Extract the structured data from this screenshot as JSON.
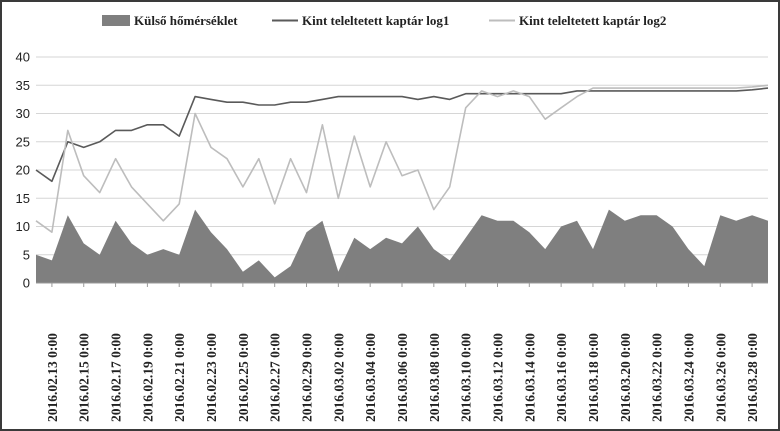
{
  "chart_data": {
    "type": "line",
    "title": "",
    "xlabel": "",
    "ylabel": "",
    "ylim": [
      0,
      40
    ],
    "yticks": [
      0,
      5,
      10,
      15,
      20,
      25,
      30,
      35,
      40
    ],
    "xlim": [
      "2016.02.12",
      "2016.03.29"
    ],
    "grid": "horizontal",
    "legend_position": "top",
    "x_tick_labels": [
      "2016.02.13 0:00",
      "2016.02.15 0:00",
      "2016.02.17 0:00",
      "2016.02.19 0:00",
      "2016.02.21 0:00",
      "2016.02.23 0:00",
      "2016.02.25 0:00",
      "2016.02.27 0:00",
      "2016.02.29 0:00",
      "2016.03.02 0:00",
      "2016.03.04 0:00",
      "2016.03.06 0:00",
      "2016.03.08 0:00",
      "2016.03.10 0:00",
      "2016.03.12 0:00",
      "2016.03.14 0:00",
      "2016.03.16 0:00",
      "2016.03.18 0:00",
      "2016.03.20 0:00",
      "2016.03.22 0:00",
      "2016.03.24 0:00",
      "2016.03.26 0:00",
      "2016.03.28 0:00"
    ],
    "series": [
      {
        "name": "Külső hőmérséklet",
        "kind": "area",
        "color": "#7f7f7f",
        "x": [
          "2016.02.12",
          "2016.02.13",
          "2016.02.14",
          "2016.02.15",
          "2016.02.16",
          "2016.02.17",
          "2016.02.18",
          "2016.02.19",
          "2016.02.20",
          "2016.02.21",
          "2016.02.22",
          "2016.02.23",
          "2016.02.24",
          "2016.02.25",
          "2016.02.26",
          "2016.02.27",
          "2016.02.28",
          "2016.02.29",
          "2016.03.01",
          "2016.03.02",
          "2016.03.03",
          "2016.03.04",
          "2016.03.05",
          "2016.03.06",
          "2016.03.07",
          "2016.03.08",
          "2016.03.09",
          "2016.03.10",
          "2016.03.11",
          "2016.03.12",
          "2016.03.13",
          "2016.03.14",
          "2016.03.15",
          "2016.03.16",
          "2016.03.17",
          "2016.03.18",
          "2016.03.19",
          "2016.03.20",
          "2016.03.21",
          "2016.03.22",
          "2016.03.23",
          "2016.03.24",
          "2016.03.25",
          "2016.03.26",
          "2016.03.27",
          "2016.03.28",
          "2016.03.29"
        ],
        "values": [
          5,
          4,
          12,
          7,
          5,
          11,
          7,
          5,
          6,
          5,
          13,
          9,
          6,
          2,
          4,
          1,
          3,
          9,
          11,
          2,
          8,
          6,
          8,
          7,
          10,
          6,
          4,
          8,
          12,
          11,
          11,
          9,
          6,
          10,
          11,
          6,
          13,
          11,
          12,
          12,
          10,
          6,
          3,
          12,
          11,
          12,
          11
        ]
      },
      {
        "name": "Kint teleltetett kaptár log1",
        "kind": "line",
        "color": "#5a5a5a",
        "x": [
          "2016.02.12",
          "2016.02.13",
          "2016.02.14",
          "2016.02.15",
          "2016.02.16",
          "2016.02.17",
          "2016.02.18",
          "2016.02.19",
          "2016.02.20",
          "2016.02.21",
          "2016.02.22",
          "2016.02.23",
          "2016.02.24",
          "2016.02.25",
          "2016.02.26",
          "2016.02.27",
          "2016.02.28",
          "2016.02.29",
          "2016.03.01",
          "2016.03.02",
          "2016.03.03",
          "2016.03.04",
          "2016.03.05",
          "2016.03.06",
          "2016.03.07",
          "2016.03.08",
          "2016.03.09",
          "2016.03.10",
          "2016.03.11",
          "2016.03.12",
          "2016.03.13",
          "2016.03.14",
          "2016.03.15",
          "2016.03.16",
          "2016.03.17",
          "2016.03.18",
          "2016.03.19",
          "2016.03.20",
          "2016.03.21",
          "2016.03.22",
          "2016.03.23",
          "2016.03.24",
          "2016.03.25",
          "2016.03.26",
          "2016.03.27",
          "2016.03.28",
          "2016.03.29"
        ],
        "values": [
          20,
          18,
          25,
          24,
          25,
          27,
          27,
          28,
          28,
          26,
          33,
          32.5,
          32,
          32,
          31.5,
          31.5,
          32,
          32,
          32.5,
          33,
          33,
          33,
          33,
          33,
          32.5,
          33,
          32.5,
          33.5,
          33.5,
          33.5,
          33.5,
          33.5,
          33.5,
          33.5,
          34,
          34,
          34,
          34,
          34,
          34,
          34,
          34,
          34,
          34,
          34,
          34.2,
          34.5
        ]
      },
      {
        "name": "Kint teleltetett kaptár log2",
        "kind": "line",
        "color": "#bdbdbd",
        "x": [
          "2016.02.12",
          "2016.02.13",
          "2016.02.14",
          "2016.02.15",
          "2016.02.16",
          "2016.02.17",
          "2016.02.18",
          "2016.02.19",
          "2016.02.20",
          "2016.02.21",
          "2016.02.22",
          "2016.02.23",
          "2016.02.24",
          "2016.02.25",
          "2016.02.26",
          "2016.02.27",
          "2016.02.28",
          "2016.02.29",
          "2016.03.01",
          "2016.03.02",
          "2016.03.03",
          "2016.03.04",
          "2016.03.05",
          "2016.03.06",
          "2016.03.07",
          "2016.03.08",
          "2016.03.09",
          "2016.03.10",
          "2016.03.11",
          "2016.03.12",
          "2016.03.13",
          "2016.03.14",
          "2016.03.15",
          "2016.03.16",
          "2016.03.17",
          "2016.03.18",
          "2016.03.19",
          "2016.03.20",
          "2016.03.21",
          "2016.03.22",
          "2016.03.23",
          "2016.03.24",
          "2016.03.25",
          "2016.03.26",
          "2016.03.27",
          "2016.03.28",
          "2016.03.29"
        ],
        "values": [
          11,
          9,
          27,
          19,
          16,
          22,
          17,
          14,
          11,
          14,
          30,
          24,
          22,
          17,
          22,
          14,
          22,
          16,
          28,
          15,
          26,
          17,
          25,
          19,
          20,
          13,
          17,
          31,
          34,
          33,
          34,
          33,
          29,
          31,
          33,
          34.5,
          34.5,
          34.5,
          34.5,
          34.5,
          34.5,
          34.5,
          34.5,
          34.5,
          34.5,
          34.7,
          35
        ]
      }
    ]
  }
}
